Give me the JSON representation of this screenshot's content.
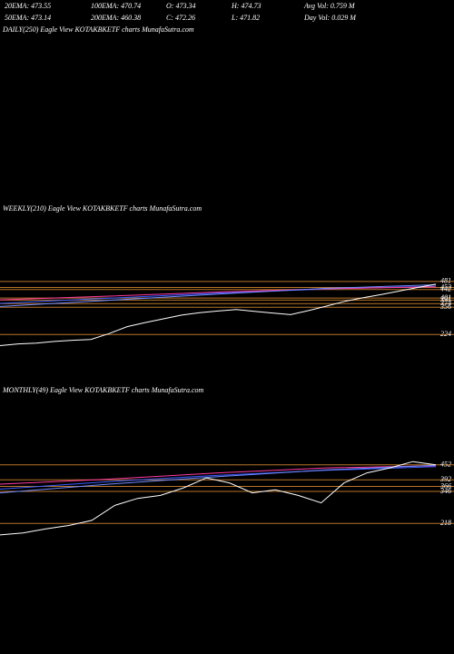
{
  "header": {
    "row1": [
      "20EMA: 473.55",
      "100EMA: 470.74",
      "O: 473.34",
      "H: 474.73",
      "Avg Vol: 0.759 M"
    ],
    "row2": [
      "50EMA: 473.14",
      "200EMA: 460.38",
      "C: 472.26",
      "L: 471.82",
      "Day Vol: 0.029 M"
    ],
    "daily_title": "DAILY(250) Eagle View KOTAKBKETF charts MunafaSutra.com"
  },
  "chart_data": [
    {
      "type": "line",
      "title": "WEEKLY(210) Eagle View KOTAKBKETF charts MunafaSutra.com",
      "ylim": [
        150,
        560
      ],
      "yticks": [
        481,
        452,
        442,
        401,
        391,
        374,
        356,
        224
      ],
      "level_color": "#b8742a",
      "series": [
        {
          "color": "#3a5cff",
          "values": [
            375,
            400,
            425,
            445,
            458
          ]
        },
        {
          "color": "#ff3aa0",
          "values": [
            392,
            410,
            430,
            446,
            455
          ]
        },
        {
          "color": "#6f8bff",
          "values": [
            360,
            390,
            420,
            448,
            465
          ]
        },
        {
          "color": "#ffffff",
          "values": [
            170,
            178,
            182,
            190,
            196,
            200,
            228,
            262,
            282,
            300,
            318,
            330,
            338,
            345,
            336,
            328,
            320,
            340,
            362,
            385,
            402,
            418,
            435,
            452,
            468
          ]
        }
      ]
    },
    {
      "type": "line",
      "title": "MONTHLY(49) Eagle View KOTAKBKETF charts MunafaSutra.com",
      "ylim": [
        150,
        520
      ],
      "yticks": [
        452,
        392,
        366,
        346,
        218
      ],
      "level_color": "#b8742a",
      "series": [
        {
          "color": "#3a5cff",
          "values": [
            355,
            385,
            410,
            430,
            445
          ]
        },
        {
          "color": "#ff3aa0",
          "values": [
            375,
            395,
            420,
            440,
            448
          ]
        },
        {
          "color": "#6f8bff",
          "values": [
            340,
            375,
            405,
            432,
            450
          ]
        },
        {
          "color": "#ffffff",
          "values": [
            172,
            180,
            196,
            210,
            230,
            290,
            318,
            330,
            360,
            400,
            380,
            340,
            352,
            330,
            300,
            380,
            420,
            440,
            465,
            452
          ]
        }
      ]
    }
  ]
}
